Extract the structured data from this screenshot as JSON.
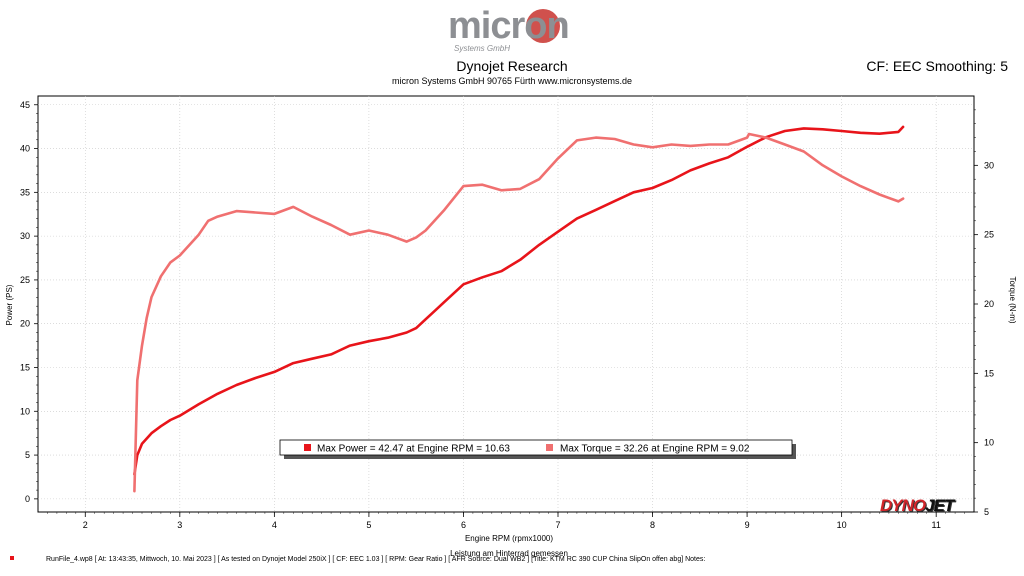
{
  "header": {
    "logo_text": "micron",
    "logo_sub": "Systems GmbH",
    "title": "Dynojet Research",
    "subtitle": "micron Systems GmbH  90765 Fürth www.micronsystems.de",
    "cf_label": "CF: EEC Smoothing: 5"
  },
  "brand": {
    "dyno": "DYNO",
    "jet": "JET"
  },
  "footer": {
    "run_info": "RunFile_4.wp8  [ At:  13:43:35,  Mittwoch,  10. Mai 2023 ]  [ As tested on Dynojet Model 250iX ]  [ CF:  EEC 1.03 ]  [ RPM:  Gear Ratio ]  [ AFR Source: Dual WB2 ]  [Title:  KTM RC 390 CUP China SlipOn offen abg]    Notes:"
  },
  "colors": {
    "power": "#e8141a",
    "torque": "#f07070",
    "legend_shadow": "#555555"
  },
  "chart_data": {
    "type": "line",
    "xlabel": "Engine RPM (rpmx1000)",
    "xlabel2": "Leistung am Hinterrad gemessen",
    "ylabel": "Power (PS)",
    "ylabel_right": "Torque (N-m)",
    "xlim": [
      1.5,
      11.4
    ],
    "ylim": [
      -1.5,
      46
    ],
    "ylim_right": [
      5,
      35
    ],
    "x_ticks": [
      2,
      3,
      4,
      5,
      6,
      7,
      8,
      9,
      10,
      11
    ],
    "y_ticks": [
      0,
      5,
      10,
      15,
      20,
      25,
      30,
      35,
      40,
      45
    ],
    "y_ticks_right": [
      5,
      10,
      15,
      20,
      25,
      30
    ],
    "legend": [
      "Max Power = 42.47 at Engine RPM = 10.63",
      "Max Torque = 32.26 at Engine RPM = 9.02"
    ],
    "series": [
      {
        "name": "Power",
        "axis": "left",
        "x": [
          2.52,
          2.55,
          2.6,
          2.7,
          2.8,
          2.9,
          3.0,
          3.2,
          3.4,
          3.6,
          3.8,
          4.0,
          4.2,
          4.4,
          4.6,
          4.7,
          4.8,
          5.0,
          5.2,
          5.4,
          5.5,
          5.6,
          5.7,
          5.8,
          6.0,
          6.2,
          6.4,
          6.6,
          6.8,
          7.0,
          7.2,
          7.4,
          7.6,
          7.8,
          8.0,
          8.2,
          8.4,
          8.6,
          8.8,
          9.0,
          9.2,
          9.4,
          9.6,
          9.8,
          10.0,
          10.2,
          10.4,
          10.6,
          10.65
        ],
        "y": [
          2.8,
          5.0,
          6.3,
          7.5,
          8.3,
          9.0,
          9.5,
          10.8,
          12.0,
          13.0,
          13.8,
          14.5,
          15.5,
          16.0,
          16.5,
          17.0,
          17.5,
          18.0,
          18.4,
          19.0,
          19.5,
          20.5,
          21.5,
          22.5,
          24.5,
          25.3,
          26.0,
          27.3,
          29.0,
          30.5,
          32.0,
          33.0,
          34.0,
          35.0,
          35.5,
          36.4,
          37.5,
          38.3,
          39.0,
          40.2,
          41.3,
          42.0,
          42.3,
          42.2,
          42.0,
          41.8,
          41.7,
          41.9,
          42.47
        ]
      },
      {
        "name": "Torque",
        "axis": "right",
        "x": [
          2.52,
          2.55,
          2.6,
          2.65,
          2.7,
          2.8,
          2.9,
          3.0,
          3.2,
          3.3,
          3.4,
          3.6,
          3.8,
          4.0,
          4.2,
          4.4,
          4.6,
          4.8,
          5.0,
          5.2,
          5.4,
          5.5,
          5.6,
          5.8,
          6.0,
          6.2,
          6.4,
          6.6,
          6.8,
          7.0,
          7.2,
          7.4,
          7.6,
          7.8,
          8.0,
          8.2,
          8.4,
          8.6,
          8.8,
          9.0,
          9.02,
          9.2,
          9.4,
          9.6,
          9.8,
          10.0,
          10.2,
          10.4,
          10.6,
          10.65
        ],
        "y": [
          6.5,
          14.5,
          17.0,
          19.0,
          20.5,
          22.0,
          23.0,
          23.5,
          25.0,
          26.0,
          26.3,
          26.7,
          26.6,
          26.5,
          27.0,
          26.3,
          25.7,
          25.0,
          25.3,
          25.0,
          24.5,
          24.8,
          25.3,
          26.8,
          28.5,
          28.6,
          28.2,
          28.3,
          29.0,
          30.5,
          31.8,
          32.0,
          31.9,
          31.5,
          31.3,
          31.5,
          31.4,
          31.5,
          31.5,
          32.0,
          32.26,
          32.0,
          31.5,
          31.0,
          30.0,
          29.2,
          28.5,
          27.9,
          27.4,
          27.6
        ]
      }
    ]
  }
}
